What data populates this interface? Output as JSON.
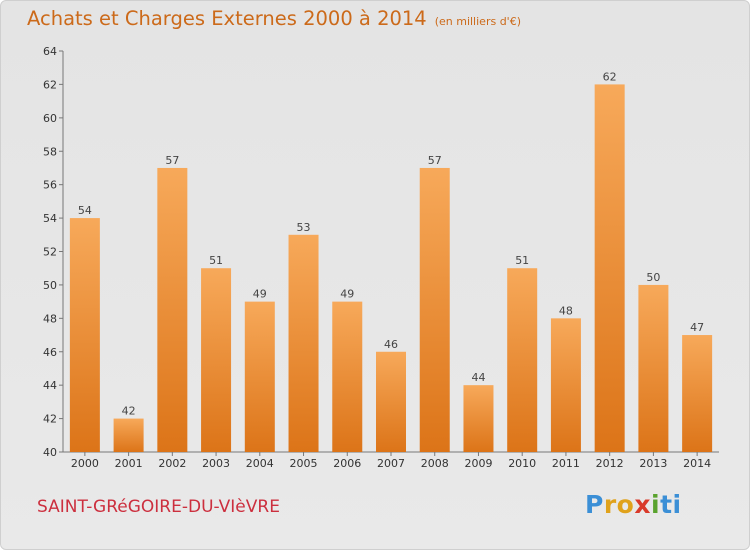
{
  "header": {
    "title": "Achats et Charges Externes 2000 à 2014",
    "unit": "(en milliers d'€)"
  },
  "footer": {
    "commune": "SAINT-GRéGOIRE-DU-VIèVRE"
  },
  "logo": {
    "letters": [
      "P",
      "r",
      "o",
      "x",
      "i",
      "t",
      "i"
    ],
    "colors": [
      "#3b8fd6",
      "#e0a21b",
      "#e0a21b",
      "#d93a2a",
      "#5aa32e",
      "#3b8fd6",
      "#3b8fd6"
    ]
  },
  "colors": {
    "bar_light": "#f7a95a",
    "bar_dark": "#e07a1c",
    "title": "#cc6a1a",
    "commune": "#cc2f3e"
  },
  "chart_data": {
    "type": "bar",
    "title": "Achats et Charges Externes 2000 à 2014",
    "categories": [
      "2000",
      "2001",
      "2002",
      "2003",
      "2004",
      "2005",
      "2006",
      "2007",
      "2008",
      "2009",
      "2010",
      "2011",
      "2012",
      "2013",
      "2014"
    ],
    "values": [
      54,
      42,
      57,
      51,
      49,
      53,
      49,
      46,
      57,
      44,
      51,
      48,
      62,
      50,
      47
    ],
    "ylim": [
      40,
      64
    ],
    "yticks": [
      40,
      42,
      44,
      46,
      48,
      50,
      52,
      54,
      56,
      58,
      60,
      62,
      64
    ],
    "grid": false,
    "data_labels": true
  }
}
